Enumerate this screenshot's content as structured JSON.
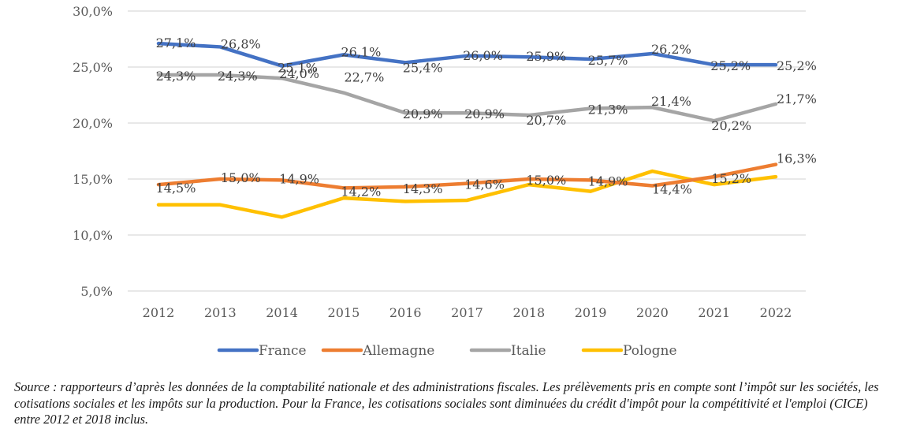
{
  "chart_data": {
    "type": "line",
    "title": "",
    "xlabel": "",
    "ylabel": "",
    "x": [
      "2012",
      "2013",
      "2014",
      "2015",
      "2016",
      "2017",
      "2018",
      "2019",
      "2020",
      "2021",
      "2022"
    ],
    "ylim": [
      5,
      30
    ],
    "yticks": [
      5,
      10,
      15,
      20,
      25,
      30
    ],
    "ytick_labels": [
      "5,0%",
      "10,0%",
      "15,0%",
      "20,0%",
      "25,0%",
      "30,0%"
    ],
    "grid": true,
    "legend_position": "bottom",
    "series": [
      {
        "name": "France",
        "color": "#4472C4",
        "values": [
          27.1,
          26.8,
          25.1,
          26.1,
          25.4,
          26.0,
          25.9,
          25.7,
          26.2,
          25.2,
          25.2
        ],
        "labels": [
          "27,1%",
          "26,8%",
          "25,1%",
          "26,1%",
          "25,4%",
          "26,0%",
          "25,9%",
          "25,7%",
          "26,2%",
          "25,2%",
          "25,2%"
        ]
      },
      {
        "name": "Allemagne",
        "color": "#ED7D31",
        "values": [
          14.5,
          15.0,
          14.9,
          14.2,
          14.3,
          14.6,
          15.0,
          14.9,
          14.4,
          15.2,
          16.3
        ],
        "labels": [
          "14,5%",
          "15,0%",
          "14,9%",
          "14,2%",
          "14,3%",
          "14,6%",
          "15,0%",
          "14,9%",
          "14,4%",
          "15,2%",
          "16,3%"
        ]
      },
      {
        "name": "Italie",
        "color": "#A5A5A5",
        "values": [
          24.3,
          24.3,
          24.0,
          22.7,
          20.9,
          20.9,
          20.7,
          21.3,
          21.4,
          20.2,
          21.7
        ],
        "labels": [
          "24,3%",
          "24,3%",
          "24,0%",
          "22,7%",
          "20,9%",
          "20,9%",
          "20,7%",
          "21,3%",
          "21,4%",
          "20,2%",
          "21,7%"
        ]
      },
      {
        "name": "Pologne",
        "color": "#FFC000",
        "values": [
          12.7,
          12.7,
          11.6,
          13.3,
          13.0,
          13.1,
          14.5,
          13.9,
          15.7,
          14.5,
          15.2
        ],
        "labels": []
      }
    ]
  },
  "caption": "Source : rapporteurs d’après les données de la comptabilité nationale et des administrations fiscales. Les prélèvements pris en compte sont l’impôt sur les sociétés, les cotisations sociales et les impôts sur la production. Pour la France, les cotisations sociales sont diminuées du crédit d'impôt pour la compétitivité et l'emploi (CICE) entre 2012 et 2018 inclus."
}
